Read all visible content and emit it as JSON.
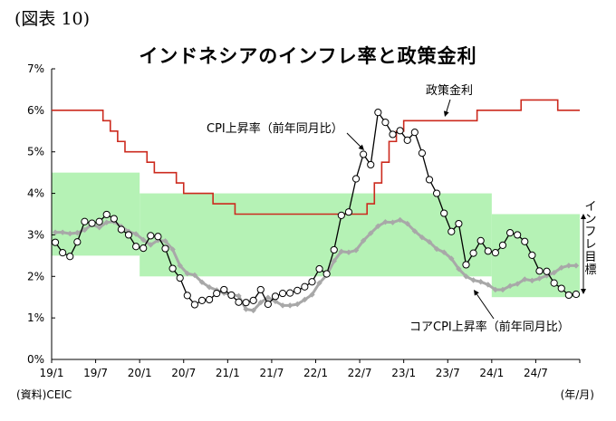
{
  "figure_label": "(図表 10)",
  "source_note": "(資料)CEIC",
  "unit_note": "(年/月)",
  "chart_data": {
    "type": "line",
    "title": "インドネシアのインフレ率と政策金利",
    "xlabel": "",
    "ylabel": "",
    "y_ticks": [
      "0%",
      "1%",
      "2%",
      "3%",
      "4%",
      "5%",
      "6%",
      "7%"
    ],
    "ylim": [
      0,
      7
    ],
    "x_tick_labels": [
      "19/1",
      "19/7",
      "20/1",
      "20/7",
      "21/1",
      "21/7",
      "22/1",
      "22/7",
      "23/1",
      "23/7",
      "24/1",
      "24/7"
    ],
    "grid": false,
    "colors": {
      "policy_rate": "#cc2a1e",
      "cpi": "#000000",
      "core_cpi": "#a8a8a8",
      "target_band": "#b5f2b5"
    },
    "annotations": {
      "policy_rate": "政策金利",
      "cpi": "CPI上昇率（前年同月比）",
      "core_cpi": "コアCPI上昇率（前年同月比）",
      "target_band": "インフレ目標"
    },
    "target_band": [
      {
        "from": "2019-01",
        "to": "2019-12",
        "low": 2.5,
        "high": 4.5
      },
      {
        "from": "2020-01",
        "to": "2023-12",
        "low": 2.0,
        "high": 4.0
      },
      {
        "from": "2024-01",
        "to": "2024-12",
        "low": 1.5,
        "high": 3.5
      }
    ],
    "series": [
      {
        "key": "policy_rate",
        "values": [
          6.0,
          6.0,
          6.0,
          6.0,
          6.0,
          6.0,
          6.0,
          5.75,
          5.5,
          5.25,
          5.0,
          5.0,
          5.0,
          4.75,
          4.5,
          4.5,
          4.5,
          4.25,
          4.0,
          4.0,
          4.0,
          4.0,
          3.75,
          3.75,
          3.75,
          3.5,
          3.5,
          3.5,
          3.5,
          3.5,
          3.5,
          3.5,
          3.5,
          3.5,
          3.5,
          3.5,
          3.5,
          3.5,
          3.5,
          3.5,
          3.5,
          3.5,
          3.5,
          3.75,
          4.25,
          4.75,
          5.25,
          5.5,
          5.75,
          5.75,
          5.75,
          5.75,
          5.75,
          5.75,
          5.75,
          5.75,
          5.75,
          5.75,
          6.0,
          6.0,
          6.0,
          6.0,
          6.0,
          6.0,
          6.25,
          6.25,
          6.25,
          6.25,
          6.25,
          6.0,
          6.0,
          6.0
        ]
      },
      {
        "key": "cpi",
        "values": [
          2.82,
          2.57,
          2.48,
          2.83,
          3.32,
          3.28,
          3.32,
          3.49,
          3.39,
          3.13,
          3.0,
          2.72,
          2.68,
          2.98,
          2.96,
          2.67,
          2.19,
          1.96,
          1.54,
          1.32,
          1.42,
          1.44,
          1.59,
          1.68,
          1.55,
          1.38,
          1.37,
          1.42,
          1.68,
          1.33,
          1.52,
          1.59,
          1.6,
          1.66,
          1.75,
          1.87,
          2.18,
          2.06,
          2.64,
          3.47,
          3.55,
          4.35,
          4.94,
          4.69,
          5.95,
          5.71,
          5.42,
          5.51,
          5.28,
          5.47,
          4.97,
          4.33,
          4.0,
          3.52,
          3.08,
          3.27,
          2.28,
          2.56,
          2.86,
          2.61,
          2.57,
          2.75,
          3.05,
          3.0,
          2.84,
          2.51,
          2.13,
          2.12,
          1.84,
          1.71,
          1.55,
          1.57
        ]
      },
      {
        "key": "core_cpi",
        "values": [
          3.06,
          3.06,
          3.03,
          3.05,
          3.12,
          3.25,
          3.18,
          3.3,
          3.32,
          3.2,
          3.08,
          3.02,
          2.88,
          2.76,
          2.87,
          2.85,
          2.65,
          2.26,
          2.07,
          2.03,
          1.86,
          1.74,
          1.67,
          1.6,
          1.56,
          1.53,
          1.21,
          1.18,
          1.37,
          1.49,
          1.4,
          1.3,
          1.3,
          1.33,
          1.44,
          1.56,
          1.84,
          2.03,
          2.37,
          2.6,
          2.58,
          2.63,
          2.86,
          3.04,
          3.21,
          3.31,
          3.3,
          3.36,
          3.27,
          3.09,
          2.94,
          2.83,
          2.66,
          2.58,
          2.43,
          2.18,
          2.0,
          1.91,
          1.87,
          1.8,
          1.68,
          1.68,
          1.77,
          1.82,
          1.93,
          1.9,
          1.95,
          2.02,
          2.09,
          2.21,
          2.26,
          2.26
        ]
      }
    ]
  }
}
